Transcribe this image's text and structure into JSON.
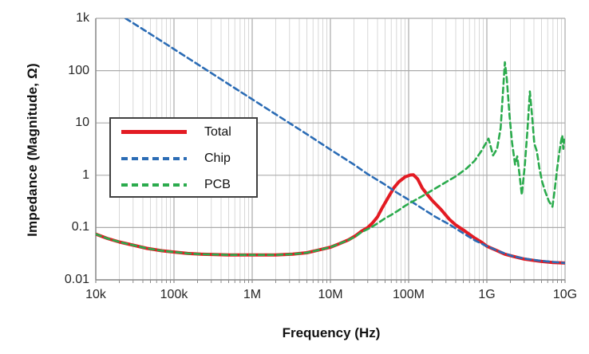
{
  "figure": {
    "background": "#ffffff",
    "axis_color": "#8c8c8c",
    "grid_minor_color": "#d8d8d8",
    "grid_major_color": "#ababab",
    "text_color": "#262626"
  },
  "chart_data": {
    "type": "line",
    "title": "",
    "xlabel": "Frequency (Hz)",
    "ylabel": "Impedance (Magnitude, Ω)",
    "x_scale": "log",
    "y_scale": "log",
    "xlim": [
      10000,
      10000000000
    ],
    "ylim": [
      0.01,
      1000
    ],
    "x_tick_values": [
      10000,
      100000,
      1000000,
      10000000,
      100000000,
      1000000000,
      10000000000
    ],
    "x_tick_labels": [
      "10k",
      "100k",
      "1M",
      "10M",
      "100M",
      "1G",
      "10G"
    ],
    "y_tick_values": [
      1000,
      100,
      10,
      1,
      0.1,
      0.01
    ],
    "y_tick_labels": [
      "1k",
      "100",
      "10",
      "1",
      "0.1",
      "0.01"
    ],
    "grid": true,
    "legend_position": "upper-left-inside",
    "series": [
      {
        "name": "Total",
        "color": "#e31b23",
        "style": "solid",
        "width": 4,
        "points": [
          [
            10000.0,
            0.075
          ],
          [
            14000.0,
            0.062
          ],
          [
            20000.0,
            0.053
          ],
          [
            30000.0,
            0.046
          ],
          [
            45000.0,
            0.04
          ],
          [
            70000.0,
            0.036
          ],
          [
            100000.0,
            0.034
          ],
          [
            150000.0,
            0.032
          ],
          [
            220000.0,
            0.031
          ],
          [
            330000.0,
            0.0305
          ],
          [
            500000.0,
            0.03
          ],
          [
            1000000.0,
            0.03
          ],
          [
            2000000.0,
            0.03
          ],
          [
            3300000.0,
            0.031
          ],
          [
            5000000.0,
            0.033
          ],
          [
            7000000.0,
            0.037
          ],
          [
            10000000.0,
            0.042
          ],
          [
            13000000.0,
            0.049
          ],
          [
            17000000.0,
            0.058
          ],
          [
            21000000.0,
            0.07
          ],
          [
            25000000.0,
            0.085
          ],
          [
            30000000.0,
            0.1
          ],
          [
            35000000.0,
            0.125
          ],
          [
            40000000.0,
            0.16
          ],
          [
            46000000.0,
            0.24
          ],
          [
            55000000.0,
            0.38
          ],
          [
            65000000.0,
            0.58
          ],
          [
            75000000.0,
            0.75
          ],
          [
            90000000.0,
            0.93
          ],
          [
            105000000.0,
            1.01
          ],
          [
            115000000.0,
            1.02
          ],
          [
            130000000.0,
            0.85
          ],
          [
            150000000.0,
            0.56
          ],
          [
            175000000.0,
            0.42
          ],
          [
            200000000.0,
            0.33
          ],
          [
            260000000.0,
            0.22
          ],
          [
            330000000.0,
            0.145
          ],
          [
            400000000.0,
            0.112
          ],
          [
            500000000.0,
            0.09
          ],
          [
            700000000.0,
            0.063
          ],
          [
            860000000.0,
            0.052
          ],
          [
            1000000000.0,
            0.044
          ],
          [
            1300000000.0,
            0.037
          ],
          [
            1700000000.0,
            0.031
          ],
          [
            2200000000.0,
            0.028
          ],
          [
            3000000000.0,
            0.025
          ],
          [
            4000000000.0,
            0.0235
          ],
          [
            5000000000.0,
            0.0225
          ],
          [
            7000000000.0,
            0.0215
          ],
          [
            10000000000.0,
            0.021
          ]
        ]
      },
      {
        "name": "Chip",
        "color": "#2b6cb5",
        "style": "dashed",
        "width": 2.6,
        "points": [
          [
            24000.0,
            1000
          ],
          [
            50000.0,
            500
          ],
          [
            100000.0,
            258
          ],
          [
            200000.0,
            133
          ],
          [
            500000.0,
            55
          ],
          [
            1000000.0,
            28.4
          ],
          [
            2000000.0,
            14.6
          ],
          [
            5000000.0,
            6.1
          ],
          [
            10000000.0,
            3.1
          ],
          [
            20000000.0,
            1.6
          ],
          [
            30000000.0,
            1.05
          ],
          [
            50000000.0,
            0.66
          ],
          [
            70000000.0,
            0.47
          ],
          [
            100000000.0,
            0.34
          ],
          [
            150000000.0,
            0.23
          ],
          [
            220000000.0,
            0.16
          ],
          [
            330000000.0,
            0.115
          ],
          [
            500000000.0,
            0.078
          ],
          [
            700000000.0,
            0.057
          ],
          [
            1000000000.0,
            0.044
          ],
          [
            1500000000.0,
            0.034
          ],
          [
            2200000000.0,
            0.028
          ],
          [
            3300000000.0,
            0.025
          ],
          [
            5000000000.0,
            0.023
          ],
          [
            7000000000.0,
            0.022
          ],
          [
            10000000000.0,
            0.021
          ]
        ]
      },
      {
        "name": "PCB",
        "color": "#2bab4d",
        "style": "dashed",
        "width": 2.6,
        "points": [
          [
            10000.0,
            0.075
          ],
          [
            14000.0,
            0.062
          ],
          [
            20000.0,
            0.053
          ],
          [
            30000.0,
            0.046
          ],
          [
            45000.0,
            0.04
          ],
          [
            70000.0,
            0.036
          ],
          [
            100000.0,
            0.034
          ],
          [
            150000.0,
            0.032
          ],
          [
            220000.0,
            0.031
          ],
          [
            330000.0,
            0.0305
          ],
          [
            500000.0,
            0.03
          ],
          [
            1000000.0,
            0.03
          ],
          [
            2000000.0,
            0.03
          ],
          [
            3300000.0,
            0.031
          ],
          [
            5000000.0,
            0.033
          ],
          [
            7000000.0,
            0.037
          ],
          [
            10000000.0,
            0.042
          ],
          [
            13000000.0,
            0.049
          ],
          [
            17000000.0,
            0.058
          ],
          [
            21000000.0,
            0.068
          ],
          [
            25000000.0,
            0.082
          ],
          [
            32000000.0,
            0.098
          ],
          [
            40000000.0,
            0.12
          ],
          [
            50000000.0,
            0.15
          ],
          [
            60000000.0,
            0.175
          ],
          [
            73000000.0,
            0.21
          ],
          [
            90000000.0,
            0.26
          ],
          [
            110000000.0,
            0.31
          ],
          [
            150000000.0,
            0.4
          ],
          [
            220000000.0,
            0.56
          ],
          [
            300000000.0,
            0.74
          ],
          [
            400000000.0,
            0.95
          ],
          [
            550000000.0,
            1.35
          ],
          [
            700000000.0,
            1.9
          ],
          [
            850000000.0,
            2.9
          ],
          [
            1050000000.0,
            5.0
          ],
          [
            1200000000.0,
            2.4
          ],
          [
            1350000000.0,
            3.2
          ],
          [
            1500000000.0,
            8
          ],
          [
            1600000000.0,
            35
          ],
          [
            1700000000.0,
            145
          ],
          [
            1800000000.0,
            70
          ],
          [
            1950000000.0,
            14
          ],
          [
            2100000000.0,
            4.2
          ],
          [
            2300000000.0,
            1.6
          ],
          [
            2450000000.0,
            2.3
          ],
          [
            2600000000.0,
            1.1
          ],
          [
            2800000000.0,
            0.42
          ],
          [
            3050000000.0,
            1.5
          ],
          [
            3300000000.0,
            7
          ],
          [
            3550000000.0,
            40
          ],
          [
            3800000000.0,
            13
          ],
          [
            4050000000.0,
            4.0
          ],
          [
            4350000000.0,
            2.9
          ],
          [
            4700000000.0,
            1.35
          ],
          [
            5100000000.0,
            0.75
          ],
          [
            5600000000.0,
            0.48
          ],
          [
            6200000000.0,
            0.32
          ],
          [
            6900000000.0,
            0.25
          ],
          [
            7400000000.0,
            0.55
          ],
          [
            7900000000.0,
            1.3
          ],
          [
            8400000000.0,
            2.6
          ],
          [
            8850000000.0,
            4.3
          ],
          [
            9200000000.0,
            5.8
          ],
          [
            9500000000.0,
            3.2
          ],
          [
            9750000000.0,
            4.8
          ],
          [
            10000000000.0,
            4.2
          ]
        ]
      }
    ]
  }
}
